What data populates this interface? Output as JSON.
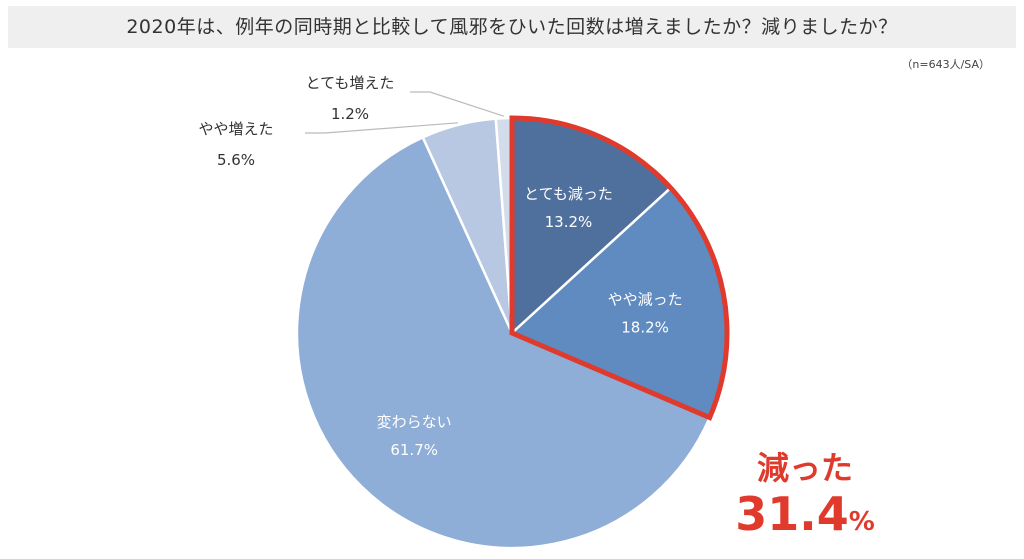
{
  "title": "2020年は、例年の同時期と比較して風邪をひいた回数は増えましたか？減りましたか？",
  "note": "（n=643人/SA）",
  "chart_data": {
    "type": "pie",
    "slices": [
      {
        "label": "とても減った",
        "value": 13.2,
        "display": "13.2%",
        "color": "#4f6f9c"
      },
      {
        "label": "やや減った",
        "value": 18.2,
        "display": "18.2%",
        "color": "#5f8bc0"
      },
      {
        "label": "変わらない",
        "value": 61.7,
        "display": "61.7%",
        "color": "#8eadd7"
      },
      {
        "label": "やや増えた",
        "value": 5.6,
        "display": "5.6%",
        "color": "#b8c8e2"
      },
      {
        "label": "とても増えた",
        "value": 1.2,
        "display": "1.2%",
        "color": "#d3dcea"
      }
    ],
    "highlight": {
      "label": "減った",
      "value": "31.4",
      "unit": "%",
      "color": "#e03a2c"
    }
  }
}
